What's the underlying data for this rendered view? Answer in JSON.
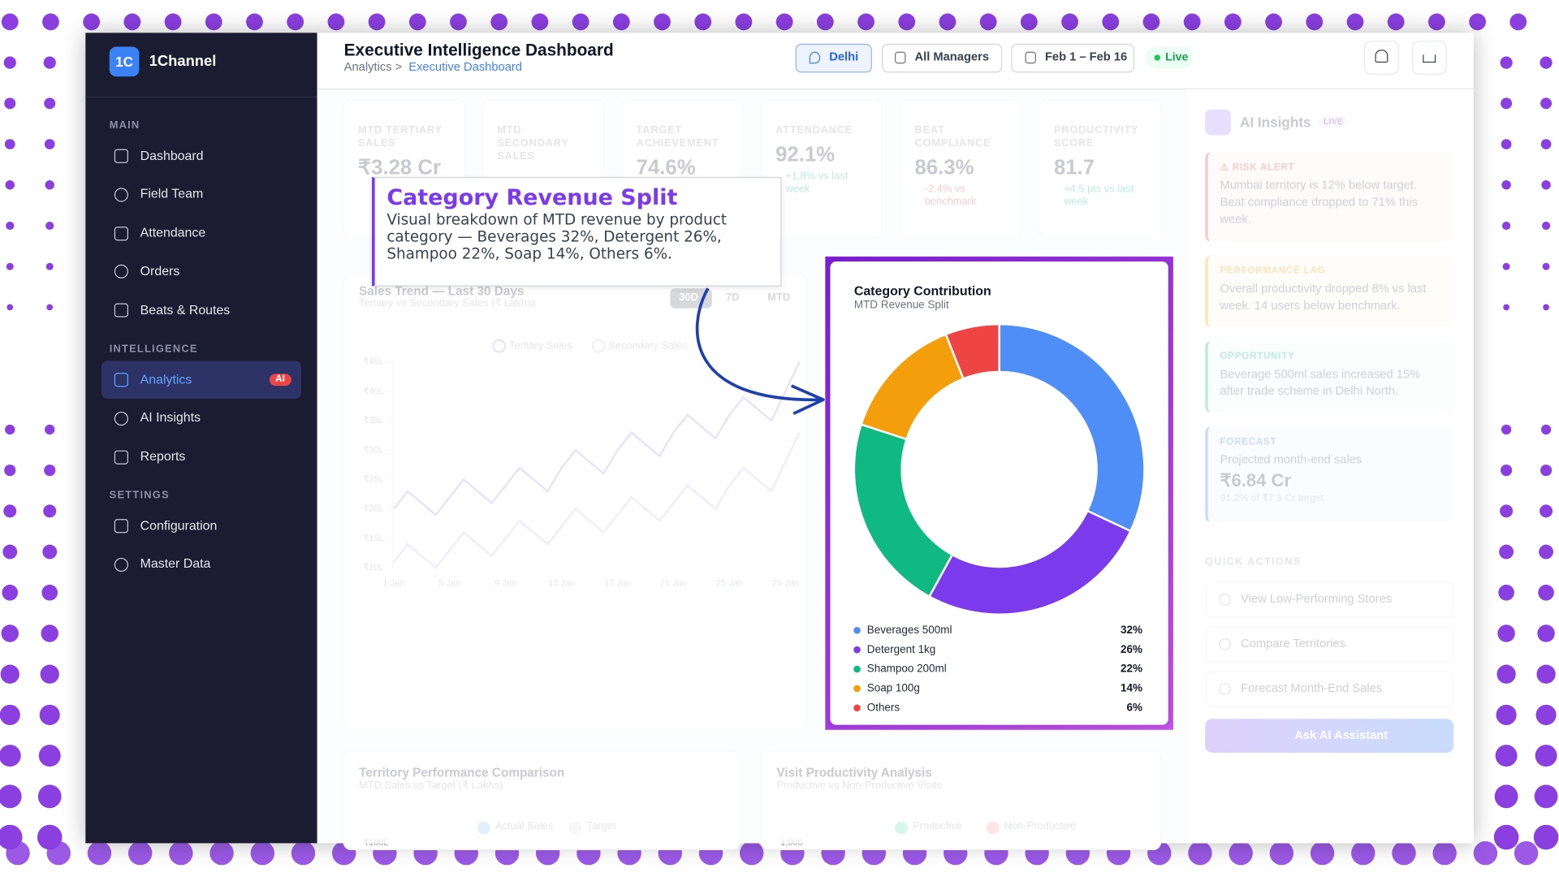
{
  "sidebar": {
    "logo": "1C",
    "brand": "1Channel",
    "sections": [
      {
        "title": "MAIN",
        "items": [
          {
            "label": "Dashboard"
          },
          {
            "label": "Field Team"
          },
          {
            "label": "Attendance"
          },
          {
            "label": "Orders"
          },
          {
            "label": "Beats & Routes"
          }
        ]
      },
      {
        "title": "INTELLIGENCE",
        "items": [
          {
            "label": "Analytics",
            "badge": "AI",
            "active": true
          },
          {
            "label": "AI Insights"
          },
          {
            "label": "Reports"
          }
        ]
      },
      {
        "title": "SETTINGS",
        "items": [
          {
            "label": "Configuration"
          },
          {
            "label": "Master Data"
          }
        ]
      }
    ]
  },
  "header": {
    "title": "Executive Intelligence Dashboard",
    "breadcrumb": "Analytics >",
    "breadcrumb_current": "Executive Dashboard",
    "filters": [
      "Delhi",
      "All Managers",
      "Feb 1 – Feb 16"
    ],
    "status": "Live"
  },
  "kpis": [
    {
      "label": "MTD TERTIARY SALES",
      "value": "₹3.28 Cr"
    },
    {
      "label": "MTD SECONDARY SALES"
    },
    {
      "label": "TARGET ACHIEVEMENT",
      "value": "74.6%"
    },
    {
      "label": "ATTENDANCE",
      "value": "92.1%",
      "change": "+1.8% vs last week",
      "change_color": "#10b981"
    },
    {
      "label": "BEAT COMPLIANCE",
      "value": "86.3%",
      "change": "-2.4% vs benchmark",
      "change_color": "#ef4444"
    },
    {
      "label": "PRODUCTIVITY SCORE",
      "value": "81.7",
      "change": "+4.5 pts vs last week",
      "change_color": "#10b981"
    }
  ],
  "callout": {
    "title": "Category Revenue Split",
    "text": "Visual breakdown of MTD revenue by product category — Beverages 32%, Detergent 26%, Shampoo 22%, Soap 14%, Others 6%."
  },
  "insights": {
    "title": "AI Insights",
    "badge": "LIVE",
    "cards": [
      {
        "tag": "⚠ RISK ALERT",
        "text": "Mumbai territory is 12% below target. Beat compliance dropped to 71% this week.",
        "color": "#ef4444"
      },
      {
        "tag": "PERFORMANCE LAG",
        "text": "Overall productivity dropped 8% vs last week. 14 users below benchmark.",
        "color": "#f59e0b"
      },
      {
        "tag": "OPPORTUNITY",
        "text": "Beverage 500ml sales increased 15% after trade scheme in Delhi North.",
        "color": "#10b981"
      },
      {
        "tag": "FORECAST",
        "text": "Projected month-end sales",
        "value": "₹6.84 Cr",
        "note": "91.2% of ₹7.5 Cr target",
        "color": "#3b82f6"
      }
    ]
  },
  "quick_actions": {
    "title": "QUICK ACTIONS",
    "items": [
      "View Low-Performing Stores",
      "Compare Territories",
      "Forecast Month-End Sales"
    ],
    "assistant": "Ask AI Assistant"
  },
  "bottom_cards": [
    {
      "title": "Territory Performance Comparison",
      "subtitle": "MTD Sales vs Target (₹ Lakhs)",
      "legend": [
        "Actual Sales",
        "Target"
      ],
      "colors": [
        "#93c5fd",
        "#e5e7eb"
      ],
      "first_tick": "₹160L"
    },
    {
      "title": "Visit Productivity Analysis",
      "subtitle": "Productive vs Non-Productive Visits",
      "legend": [
        "Productive",
        "Non-Productive"
      ],
      "colors": [
        "#6ee7b7",
        "#fca5a5"
      ],
      "first_tick": "1,000"
    }
  ],
  "chart_data": [
    {
      "type": "line",
      "title": "Sales Trend — Last 30 Days",
      "subtitle": "Tertiary vs Secondary Sales (₹ Lakhs)",
      "ranges": [
        "30D",
        "7D",
        "MTD"
      ],
      "categories": [
        "1 Jan",
        null,
        null,
        null,
        "5 Jan",
        null,
        null,
        null,
        "9 Jan",
        null,
        null,
        null,
        "13 Jan",
        null,
        null,
        null,
        "17 Jan",
        null,
        null,
        null,
        "21 Jan",
        null,
        null,
        null,
        "25 Jan",
        null,
        null,
        null,
        "29 Jan",
        null
      ],
      "series": [
        {
          "name": "Tertiary Sales",
          "color": "#a78bfa",
          "values": [
            20,
            23,
            21,
            19,
            22,
            25,
            23,
            21,
            24,
            27,
            25,
            23,
            27,
            30,
            28,
            26,
            30,
            33,
            31,
            29,
            33,
            36,
            34,
            32,
            36,
            39,
            37,
            35,
            40,
            45
          ]
        },
        {
          "name": "Secondary Sales",
          "color": "#c4b5fd",
          "values": [
            11,
            14,
            12,
            10,
            13,
            16,
            14,
            12,
            15,
            18,
            16,
            14,
            17,
            20,
            18,
            16,
            19,
            22,
            20,
            18,
            21,
            24,
            22,
            20,
            24,
            27,
            25,
            23,
            28,
            33
          ]
        }
      ],
      "ylim": [
        10,
        45
      ],
      "yticks": [
        {
          "value": 10,
          "label": "₹10L"
        },
        {
          "value": 15,
          "label": "₹15L"
        },
        {
          "value": 20,
          "label": "₹20L"
        },
        {
          "value": 25,
          "label": "₹25L"
        },
        {
          "value": 30,
          "label": "₹30L"
        },
        {
          "value": 35,
          "label": "₹35L"
        },
        {
          "value": 40,
          "label": "₹40L"
        },
        {
          "value": 45,
          "label": "₹45L"
        }
      ],
      "grid": false
    },
    {
      "type": "donut",
      "title": "Category Contribution",
      "subtitle": "MTD Revenue Split",
      "categories": [
        "Beverages 500ml",
        "Detergent 1kg",
        "Shampoo 200ml",
        "Soap 100g",
        "Others"
      ],
      "values": [
        32,
        26,
        22,
        14,
        6
      ],
      "value_labels": [
        "32%",
        "26%",
        "22%",
        "14%",
        "6%"
      ],
      "colors": [
        "#4f8ef7",
        "#7c3aed",
        "#10b981",
        "#f59e0b",
        "#ef4444"
      ]
    }
  ]
}
